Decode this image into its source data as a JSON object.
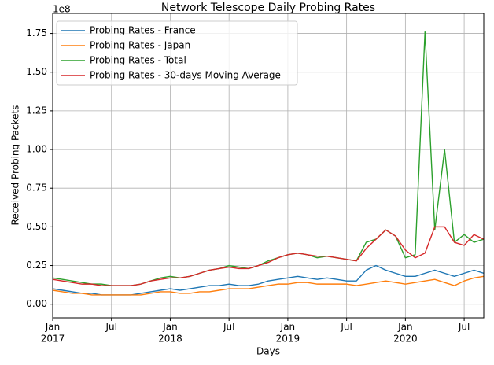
{
  "chart_data": {
    "type": "line",
    "title": "Network Telescope Daily Probing Rates",
    "x_label": "Days",
    "y_label": "Received Probing Packets",
    "y_offset_label": "1e8",
    "grid": true,
    "legend": "upper left",
    "x": [
      "2017-01",
      "2017-02",
      "2017-03",
      "2017-04",
      "2017-05",
      "2017-06",
      "2017-07",
      "2017-08",
      "2017-09",
      "2017-10",
      "2017-11",
      "2017-12",
      "2018-01",
      "2018-02",
      "2018-03",
      "2018-04",
      "2018-05",
      "2018-06",
      "2018-07",
      "2018-08",
      "2018-09",
      "2018-10",
      "2018-11",
      "2018-12",
      "2019-01",
      "2019-02",
      "2019-03",
      "2019-04",
      "2019-05",
      "2019-06",
      "2019-07",
      "2019-08",
      "2019-09",
      "2019-10",
      "2019-11",
      "2019-12",
      "2020-01",
      "2020-02",
      "2020-03",
      "2020-04",
      "2020-05",
      "2020-06",
      "2020-07",
      "2020-08",
      "2020-09"
    ],
    "xlim": [
      "2017-01",
      "2020-09"
    ],
    "xticks": [
      {
        "value": "2017-01",
        "label": "Jan",
        "year": "2017"
      },
      {
        "value": "2017-07",
        "label": "Jul"
      },
      {
        "value": "2018-01",
        "label": "Jan",
        "year": "2018"
      },
      {
        "value": "2018-07",
        "label": "Jul"
      },
      {
        "value": "2019-01",
        "label": "Jan",
        "year": "2019"
      },
      {
        "value": "2019-07",
        "label": "Jul"
      },
      {
        "value": "2020-01",
        "label": "Jan",
        "year": "2020"
      },
      {
        "value": "2020-07",
        "label": "Jul"
      }
    ],
    "ylim": [
      -0.088,
      1.88
    ],
    "yticks": [
      {
        "value": 0,
        "label": "0.00"
      },
      {
        "value": 0.25,
        "label": "0.25"
      },
      {
        "value": 0.5,
        "label": "0.50"
      },
      {
        "value": 0.75,
        "label": "0.75"
      },
      {
        "value": 1,
        "label": "1.00"
      },
      {
        "value": 1.25,
        "label": "1.25"
      },
      {
        "value": 1.5,
        "label": "1.50"
      },
      {
        "value": 1.75,
        "label": "1.75"
      }
    ],
    "series": [
      {
        "name": "Probing Rates - France",
        "color": "#1f77b4",
        "values": [
          0.1,
          0.09,
          0.08,
          0.07,
          0.07,
          0.06,
          0.06,
          0.06,
          0.06,
          0.07,
          0.08,
          0.09,
          0.1,
          0.09,
          0.1,
          0.11,
          0.12,
          0.12,
          0.13,
          0.12,
          0.12,
          0.13,
          0.15,
          0.16,
          0.17,
          0.18,
          0.17,
          0.16,
          0.17,
          0.16,
          0.15,
          0.15,
          0.22,
          0.25,
          0.22,
          0.2,
          0.18,
          0.18,
          0.2,
          0.22,
          0.2,
          0.18,
          0.2,
          0.22,
          0.2
        ]
      },
      {
        "name": "Probing Rates - Japan",
        "color": "#ff7f0e",
        "values": [
          0.09,
          0.08,
          0.07,
          0.07,
          0.06,
          0.06,
          0.06,
          0.06,
          0.06,
          0.06,
          0.07,
          0.08,
          0.08,
          0.07,
          0.07,
          0.08,
          0.08,
          0.09,
          0.1,
          0.1,
          0.1,
          0.11,
          0.12,
          0.13,
          0.13,
          0.14,
          0.14,
          0.13,
          0.13,
          0.13,
          0.13,
          0.12,
          0.13,
          0.14,
          0.15,
          0.14,
          0.13,
          0.14,
          0.15,
          0.16,
          0.14,
          0.12,
          0.15,
          0.17,
          0.18
        ]
      },
      {
        "name": "Probing Rates - Total",
        "color": "#2ca02c",
        "values": [
          0.17,
          0.16,
          0.15,
          0.14,
          0.13,
          0.13,
          0.12,
          0.12,
          0.12,
          0.13,
          0.15,
          0.17,
          0.18,
          0.17,
          0.18,
          0.2,
          0.22,
          0.23,
          0.25,
          0.24,
          0.23,
          0.25,
          0.28,
          0.3,
          0.32,
          0.33,
          0.32,
          0.3,
          0.31,
          0.3,
          0.29,
          0.28,
          0.4,
          0.42,
          0.48,
          0.44,
          0.3,
          0.32,
          1.76,
          0.48,
          1.0,
          0.4,
          0.45,
          0.4,
          0.42
        ]
      },
      {
        "name": "Probing Rates - 30-days Moving Average",
        "color": "#d62728",
        "values": [
          0.16,
          0.15,
          0.14,
          0.13,
          0.13,
          0.12,
          0.12,
          0.12,
          0.12,
          0.13,
          0.15,
          0.16,
          0.17,
          0.17,
          0.18,
          0.2,
          0.22,
          0.23,
          0.24,
          0.23,
          0.23,
          0.25,
          0.27,
          0.3,
          0.32,
          0.33,
          0.32,
          0.31,
          0.31,
          0.3,
          0.29,
          0.28,
          0.36,
          0.42,
          0.48,
          0.44,
          0.35,
          0.3,
          0.33,
          0.5,
          0.5,
          0.4,
          0.38,
          0.45,
          0.42
        ]
      }
    ]
  }
}
